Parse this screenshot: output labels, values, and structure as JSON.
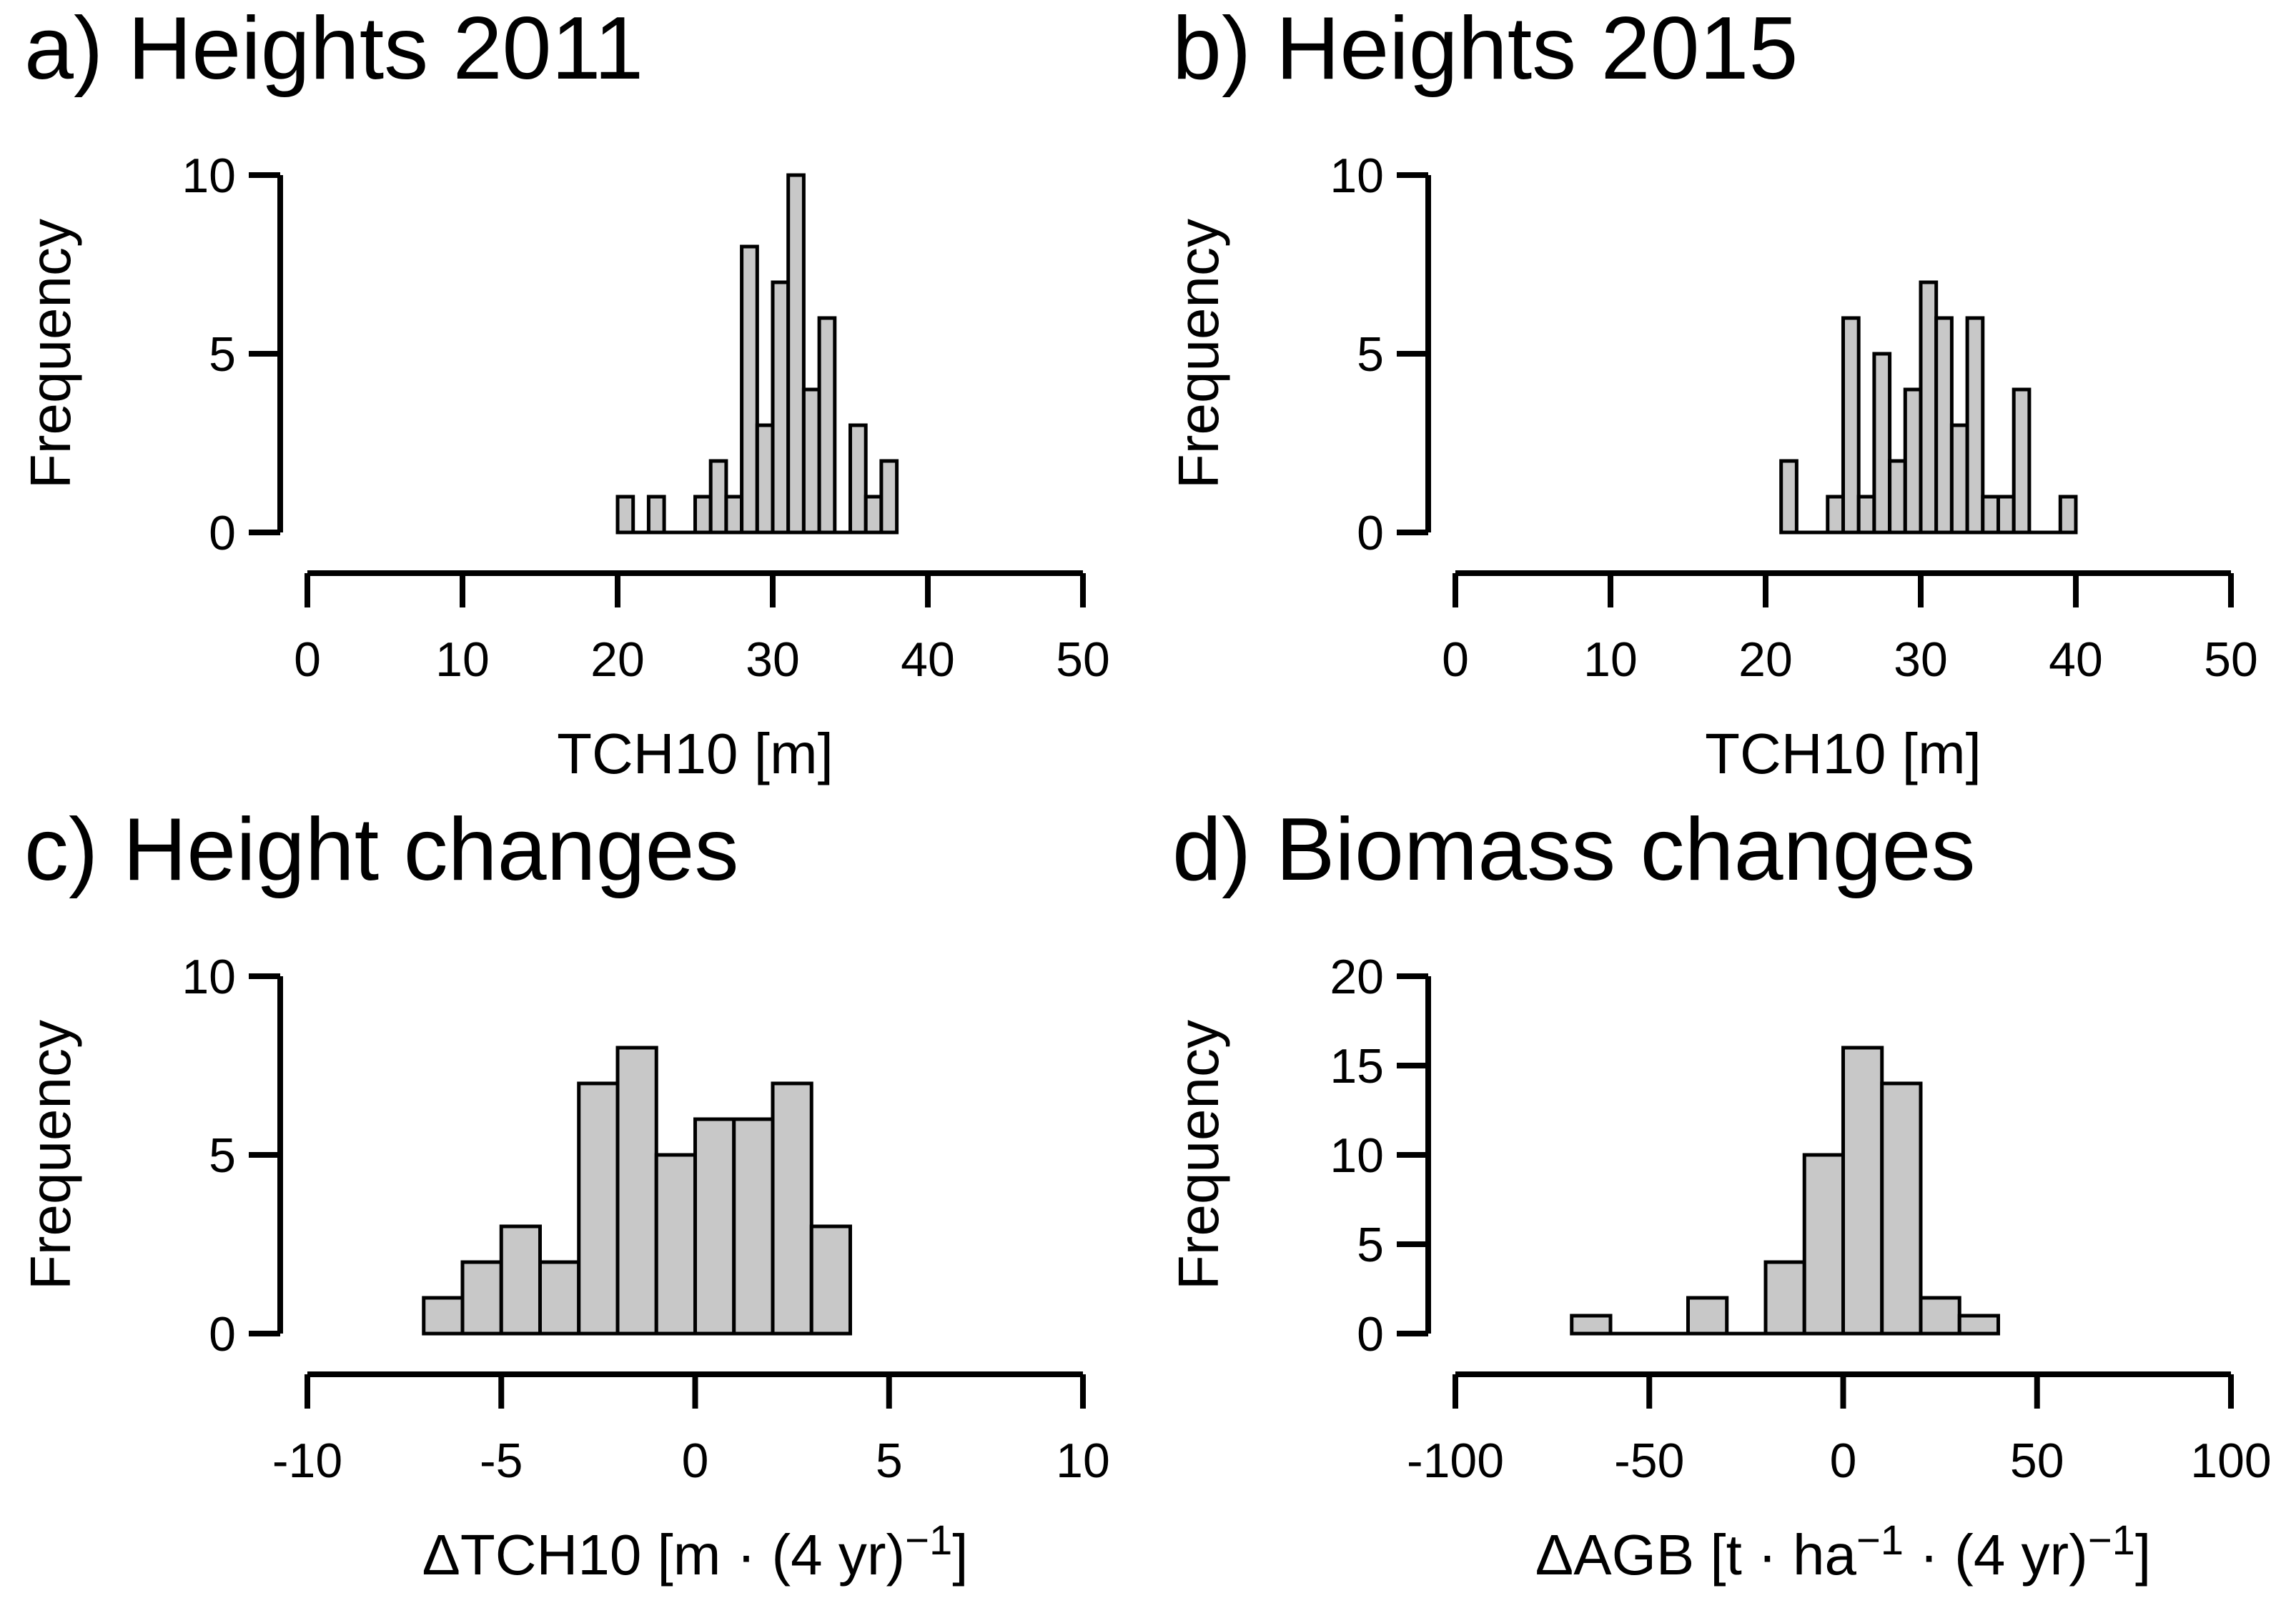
{
  "figure": {
    "background": "#ffffff",
    "text_color": "#000000",
    "axis_color": "#000000",
    "bar_fill": "#c8c8c8",
    "bar_stroke": "#000000"
  },
  "chart_data": [
    {
      "id": "a",
      "type": "bar",
      "title": "a) Heights 2011",
      "ylabel": "Frequency",
      "xlabel_segments": [
        {
          "t": "TCH10 [m]",
          "sup": false
        }
      ],
      "x_range": [
        0,
        50
      ],
      "x_ticks": [
        {
          "v": 0,
          "label": "0"
        },
        {
          "v": 10,
          "label": "10"
        },
        {
          "v": 20,
          "label": "20"
        },
        {
          "v": 30,
          "label": "30"
        },
        {
          "v": 40,
          "label": "40"
        },
        {
          "v": 50,
          "label": "50"
        }
      ],
      "y_range": [
        0,
        10
      ],
      "y_ticks": [
        {
          "v": 0,
          "label": "0"
        },
        {
          "v": 5,
          "label": "5"
        },
        {
          "v": 10,
          "label": "10"
        }
      ],
      "bin_width": 1,
      "bins": [
        [
          20,
          1
        ],
        [
          22,
          1
        ],
        [
          25,
          1
        ],
        [
          26,
          2
        ],
        [
          27,
          1
        ],
        [
          28,
          8
        ],
        [
          29,
          3
        ],
        [
          30,
          7
        ],
        [
          31,
          10
        ],
        [
          32,
          4
        ],
        [
          33,
          6
        ],
        [
          35,
          3
        ],
        [
          36,
          1
        ],
        [
          37,
          2
        ]
      ]
    },
    {
      "id": "b",
      "type": "bar",
      "title": "b) Heights 2015",
      "ylabel": "Frequency",
      "xlabel_segments": [
        {
          "t": "TCH10 [m]",
          "sup": false
        }
      ],
      "x_range": [
        0,
        50
      ],
      "x_ticks": [
        {
          "v": 0,
          "label": "0"
        },
        {
          "v": 10,
          "label": "10"
        },
        {
          "v": 20,
          "label": "20"
        },
        {
          "v": 30,
          "label": "30"
        },
        {
          "v": 40,
          "label": "40"
        },
        {
          "v": 50,
          "label": "50"
        }
      ],
      "y_range": [
        0,
        10
      ],
      "y_ticks": [
        {
          "v": 0,
          "label": "0"
        },
        {
          "v": 5,
          "label": "5"
        },
        {
          "v": 10,
          "label": "10"
        }
      ],
      "bin_width": 1,
      "bins": [
        [
          21,
          2
        ],
        [
          24,
          1
        ],
        [
          25,
          6
        ],
        [
          26,
          1
        ],
        [
          27,
          5
        ],
        [
          28,
          2
        ],
        [
          29,
          4
        ],
        [
          30,
          7
        ],
        [
          31,
          6
        ],
        [
          32,
          3
        ],
        [
          33,
          6
        ],
        [
          34,
          1
        ],
        [
          35,
          1
        ],
        [
          36,
          4
        ],
        [
          39,
          1
        ]
      ]
    },
    {
      "id": "c",
      "type": "bar",
      "title": "c) Height changes",
      "ylabel": "Frequency",
      "xlabel_segments": [
        {
          "t": "ΔTCH10 [m · (4 yr)",
          "sup": false
        },
        {
          "t": "−1",
          "sup": true
        },
        {
          "t": "]",
          "sup": false
        }
      ],
      "x_range": [
        -10,
        10
      ],
      "x_ticks": [
        {
          "v": -10,
          "label": "-10"
        },
        {
          "v": -5,
          "label": "-5"
        },
        {
          "v": 0,
          "label": "0"
        },
        {
          "v": 5,
          "label": "5"
        },
        {
          "v": 10,
          "label": "10"
        }
      ],
      "y_range": [
        0,
        10
      ],
      "y_ticks": [
        {
          "v": 0,
          "label": "0"
        },
        {
          "v": 5,
          "label": "5"
        },
        {
          "v": 10,
          "label": "10"
        }
      ],
      "bin_width": 1,
      "bins": [
        [
          -7,
          1
        ],
        [
          -6,
          2
        ],
        [
          -5,
          3
        ],
        [
          -4,
          2
        ],
        [
          -3,
          7
        ],
        [
          -2,
          8
        ],
        [
          -1,
          5
        ],
        [
          0,
          6
        ],
        [
          1,
          6
        ],
        [
          2,
          7
        ],
        [
          3,
          3
        ]
      ]
    },
    {
      "id": "d",
      "type": "bar",
      "title": "d) Biomass changes",
      "ylabel": "Frequency",
      "xlabel_segments": [
        {
          "t": "ΔAGB [t · ha",
          "sup": false
        },
        {
          "t": "−1",
          "sup": true
        },
        {
          "t": " · (4 yr)",
          "sup": false
        },
        {
          "t": "−1",
          "sup": true
        },
        {
          "t": "]",
          "sup": false
        }
      ],
      "x_range": [
        -100,
        100
      ],
      "x_ticks": [
        {
          "v": -100,
          "label": "-100"
        },
        {
          "v": -50,
          "label": "-50"
        },
        {
          "v": 0,
          "label": "0"
        },
        {
          "v": 50,
          "label": "50"
        },
        {
          "v": 100,
          "label": "100"
        }
      ],
      "y_range": [
        0,
        20
      ],
      "y_ticks": [
        {
          "v": 0,
          "label": "0"
        },
        {
          "v": 5,
          "label": "5"
        },
        {
          "v": 10,
          "label": "10"
        },
        {
          "v": 15,
          "label": "15"
        },
        {
          "v": 20,
          "label": "20"
        }
      ],
      "bin_width": 10,
      "bins": [
        [
          -70,
          1
        ],
        [
          -40,
          2
        ],
        [
          -20,
          4
        ],
        [
          -10,
          10
        ],
        [
          0,
          16
        ],
        [
          10,
          14
        ],
        [
          20,
          2
        ],
        [
          30,
          1
        ]
      ]
    }
  ]
}
